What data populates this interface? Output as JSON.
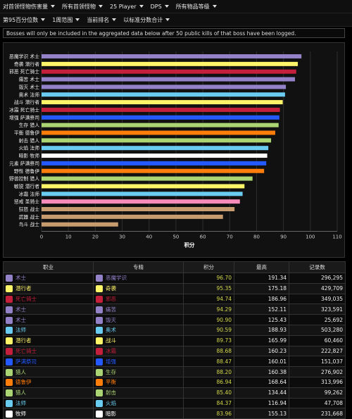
{
  "toolbar1": [
    {
      "label": "对首领怪物伤害量",
      "icon": "chevron-down-icon"
    },
    {
      "label": "所有首领怪物",
      "icon": "chevron-down-icon"
    },
    {
      "label": "25 Player",
      "icon": "chevron-down-icon"
    },
    {
      "label": "DPS",
      "icon": "chevron-down-icon"
    },
    {
      "label": "所有物品等级",
      "icon": "chevron-down-icon"
    }
  ],
  "toolbar2": [
    {
      "label": "第95百分位数",
      "icon": "chevron-down-icon"
    },
    {
      "label": "1周范围",
      "icon": "chevron-down-icon"
    },
    {
      "label": "当前排名",
      "icon": "chevron-down-icon"
    },
    {
      "label": "以标准分数合计",
      "icon": "chevron-down-icon"
    }
  ],
  "notice": "Bosses will only be included in the aggregated data below after 50 public kills of that boss have been logged.",
  "chart_data": {
    "type": "bar",
    "orientation": "horizontal",
    "title": "",
    "xlabel": "积分",
    "ylabel": "",
    "xlim": [
      0,
      110
    ],
    "xticks": [
      0,
      10,
      20,
      30,
      40,
      50,
      60,
      70,
      80,
      90,
      100,
      110
    ],
    "grid": true,
    "categories": [
      "恶魔学识 术士",
      "奇袭 潜行者",
      "邪恶 死亡骑士",
      "痛苦 术士",
      "毁灭 术士",
      "奥术 法师",
      "战斗 潜行者",
      "冰霜 死亡骑士",
      "增强 萨满祭司",
      "生存 猎人",
      "平衡 德鲁伊",
      "射击 猎人",
      "火焰 法师",
      "暗影 牧师",
      "元素 萨满祭司",
      "野性 德鲁伊",
      "野兽控制 猎人",
      "敏锐 潜行者",
      "冰霜 法师",
      "惩戒 圣骑士",
      "狂怒 战士",
      "武器 战士",
      "鸟斗 战士"
    ],
    "values": [
      96.7,
      95.35,
      94.74,
      94.29,
      90.9,
      90.59,
      89.73,
      88.68,
      88.47,
      88.2,
      86.94,
      85.4,
      84.37,
      83.96,
      83.6,
      82.8,
      78.5,
      75.5,
      74.8,
      73.8,
      71.8,
      67.5,
      28.5
    ],
    "colors": [
      "#9482c9",
      "#fff569",
      "#c41f3b",
      "#9482c9",
      "#9482c9",
      "#69ccf0",
      "#fff569",
      "#c41f3b",
      "#2459ff",
      "#abd473",
      "#ff7d0a",
      "#abd473",
      "#69ccf0",
      "#ffffff",
      "#2459ff",
      "#ff7d0a",
      "#abd473",
      "#fff569",
      "#69ccf0",
      "#f58cba",
      "#c79c6e",
      "#c79c6e",
      "#c79c6e"
    ]
  },
  "table": {
    "headers": [
      "职业",
      "专精",
      "积分",
      "最高",
      "记录数"
    ],
    "rows": [
      {
        "cls": "术士",
        "spec": "恶魔学识",
        "score": "96.70",
        "max": "191.34",
        "count": "296,295",
        "color": "#9482c9",
        "cls_icon": "warlock-icon",
        "spec_icon": "demonology-icon"
      },
      {
        "cls": "潜行者",
        "spec": "奇袭",
        "score": "95.35",
        "max": "175.18",
        "count": "429,709",
        "color": "#fff569",
        "cls_icon": "rogue-icon",
        "spec_icon": "assassination-icon"
      },
      {
        "cls": "死亡骑士",
        "spec": "邪恶",
        "score": "94.74",
        "max": "186.96",
        "count": "349,035",
        "color": "#c41f3b",
        "cls_icon": "death-knight-icon",
        "spec_icon": "unholy-icon"
      },
      {
        "cls": "术士",
        "spec": "痛苦",
        "score": "94.29",
        "max": "152.11",
        "count": "323,591",
        "color": "#9482c9",
        "cls_icon": "warlock-icon",
        "spec_icon": "affliction-icon"
      },
      {
        "cls": "术士",
        "spec": "毁灭",
        "score": "90.90",
        "max": "125.43",
        "count": "25,692",
        "color": "#9482c9",
        "cls_icon": "warlock-icon",
        "spec_icon": "destruction-icon"
      },
      {
        "cls": "法师",
        "spec": "奥术",
        "score": "90.59",
        "max": "188.93",
        "count": "503,280",
        "color": "#69ccf0",
        "cls_icon": "mage-icon",
        "spec_icon": "arcane-icon"
      },
      {
        "cls": "潜行者",
        "spec": "战斗",
        "score": "89.73",
        "max": "165.99",
        "count": "60,460",
        "color": "#fff569",
        "cls_icon": "rogue-icon",
        "spec_icon": "combat-icon"
      },
      {
        "cls": "死亡骑士",
        "spec": "冰霜",
        "score": "88.68",
        "max": "160.23",
        "count": "222,827",
        "color": "#c41f3b",
        "cls_icon": "death-knight-icon",
        "spec_icon": "frost-icon"
      },
      {
        "cls": "萨满祭司",
        "spec": "增强",
        "score": "88.47",
        "max": "160.01",
        "count": "151,037",
        "color": "#2459ff",
        "cls_icon": "shaman-icon",
        "spec_icon": "enhancement-icon"
      },
      {
        "cls": "猎人",
        "spec": "生存",
        "score": "88.20",
        "max": "160.38",
        "count": "276,902",
        "color": "#abd473",
        "cls_icon": "hunter-icon",
        "spec_icon": "survival-icon"
      },
      {
        "cls": "德鲁伊",
        "spec": "平衡",
        "score": "86.94",
        "max": "168.64",
        "count": "313,996",
        "color": "#ff7d0a",
        "cls_icon": "druid-icon",
        "spec_icon": "balance-icon"
      },
      {
        "cls": "猎人",
        "spec": "射击",
        "score": "85.40",
        "max": "134.44",
        "count": "99,262",
        "color": "#abd473",
        "cls_icon": "hunter-icon",
        "spec_icon": "marksmanship-icon"
      },
      {
        "cls": "法师",
        "spec": "火焰",
        "score": "84.37",
        "max": "116.94",
        "count": "47,708",
        "color": "#69ccf0",
        "cls_icon": "mage-icon",
        "spec_icon": "fire-icon"
      },
      {
        "cls": "牧师",
        "spec": "暗影",
        "score": "83.96",
        "max": "155.13",
        "count": "231,668",
        "color": "#ffffff",
        "cls_icon": "priest-icon",
        "spec_icon": "shadow-icon"
      }
    ]
  }
}
